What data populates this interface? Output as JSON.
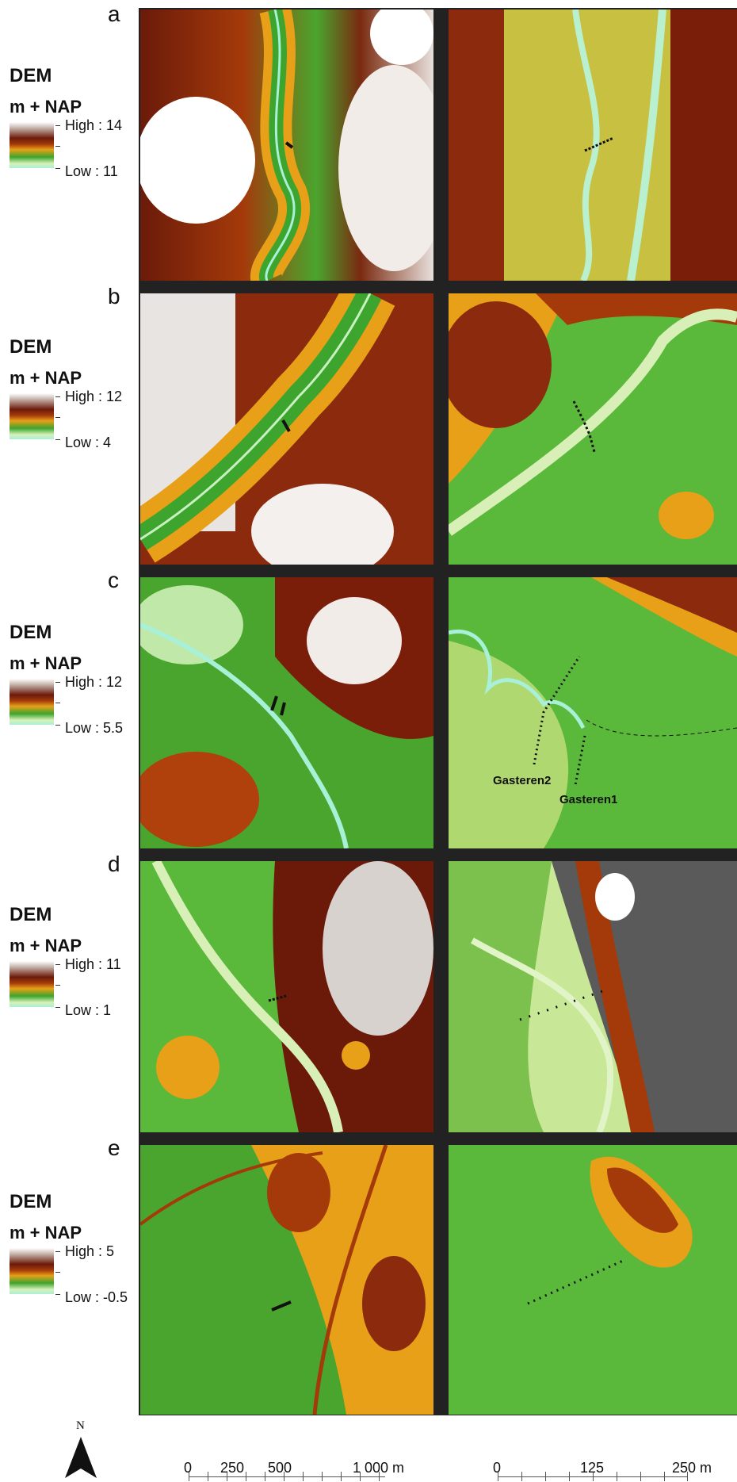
{
  "panels": [
    {
      "letter": "a",
      "legend": {
        "title": "DEM",
        "unit": "m + NAP",
        "high": "High : 14",
        "low": "Low : 11"
      }
    },
    {
      "letter": "b",
      "legend": {
        "title": "DEM",
        "unit": "m + NAP",
        "high": "High : 12",
        "low": "Low : 4"
      }
    },
    {
      "letter": "c",
      "legend": {
        "title": "DEM",
        "unit": "m + NAP",
        "high": "High : 12",
        "low": "Low : 5.5"
      },
      "labels": {
        "gasteren2": "Gasteren2",
        "gasteren1": "Gasteren1"
      }
    },
    {
      "letter": "d",
      "legend": {
        "title": "DEM",
        "unit": "m + NAP",
        "high": "High : 11",
        "low": "Low : 1"
      }
    },
    {
      "letter": "e",
      "legend": {
        "title": "DEM",
        "unit": "m + NAP",
        "high": "High : 5",
        "low": "Low : -0.5"
      }
    }
  ],
  "north": {
    "label": "N",
    "icon": "north-arrow-icon"
  },
  "scale_left": {
    "labels": [
      "0",
      "250",
      "500",
      "1 000 m"
    ]
  },
  "scale_right": {
    "labels": [
      "0",
      "125",
      "250 m"
    ]
  },
  "colors": {
    "high": "#ffffff",
    "upper": "#6b1a0a",
    "mid": "#e7a018",
    "lower": "#3da42d",
    "low": "#a8f0d8",
    "divider": "#222222"
  }
}
